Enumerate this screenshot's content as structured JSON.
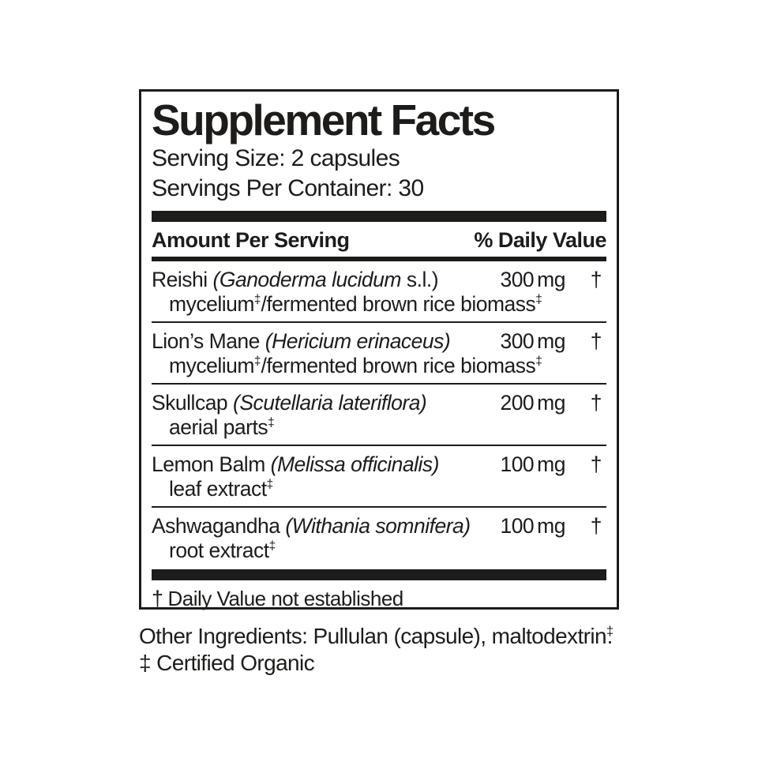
{
  "label": {
    "title": "Supplement Facts",
    "serving_size": "Serving Size: 2 capsules",
    "servings_per_container": "Servings Per Container: 30",
    "column_headers": {
      "left": "Amount Per Serving",
      "right": "% Daily Value"
    },
    "rows": [
      {
        "name_segments": [
          {
            "t": "Reishi "
          },
          {
            "t": "(Ganoderma lucidum",
            "i": true
          },
          {
            "t": " s.l.)"
          }
        ],
        "detail_segments": [
          {
            "t": "mycelium"
          },
          {
            "t": "‡",
            "sup": true
          },
          {
            "t": "/fermented brown rice biomass"
          },
          {
            "t": "‡",
            "sup": true
          }
        ],
        "amount_value": "300",
        "amount_unit": "mg",
        "daily_value": "†"
      },
      {
        "name_segments": [
          {
            "t": "Lion’s Mane "
          },
          {
            "t": "(Hericium erinaceus)",
            "i": true
          }
        ],
        "detail_segments": [
          {
            "t": "mycelium"
          },
          {
            "t": "‡",
            "sup": true
          },
          {
            "t": "/fermented brown rice biomass"
          },
          {
            "t": "‡",
            "sup": true
          }
        ],
        "amount_value": "300",
        "amount_unit": "mg",
        "daily_value": "†"
      },
      {
        "name_segments": [
          {
            "t": "Skullcap "
          },
          {
            "t": "(Scutellaria lateriflora)",
            "i": true
          }
        ],
        "detail_segments": [
          {
            "t": "aerial parts"
          },
          {
            "t": "‡",
            "sup": true
          }
        ],
        "amount_value": "200",
        "amount_unit": "mg",
        "daily_value": "†"
      },
      {
        "name_segments": [
          {
            "t": "Lemon Balm "
          },
          {
            "t": "(Melissa officinalis)",
            "i": true
          }
        ],
        "detail_segments": [
          {
            "t": "leaf extract"
          },
          {
            "t": "‡",
            "sup": true
          }
        ],
        "amount_value": "100",
        "amount_unit": "mg",
        "daily_value": "†"
      },
      {
        "name_segments": [
          {
            "t": "Ashwagandha "
          },
          {
            "t": "(Withania somnifera)",
            "i": true
          }
        ],
        "detail_segments": [
          {
            "t": "root extract"
          },
          {
            "t": "‡",
            "sup": true
          }
        ],
        "amount_value": "100",
        "amount_unit": "mg",
        "daily_value": "†"
      }
    ],
    "footnote_symbol": "†",
    "footnote_text": "Daily Value not established"
  },
  "below_label": {
    "other_ingredients_prefix": "Other Ingredients: Pullulan (capsule), maltodextrin",
    "other_ingredients_sup": "‡",
    "other_ingredients_period": ".",
    "certified_symbol": "‡ ",
    "certified_text": "Certified Organic"
  },
  "colors": {
    "ink": "#1d1c1a",
    "background": "#ffffff"
  }
}
